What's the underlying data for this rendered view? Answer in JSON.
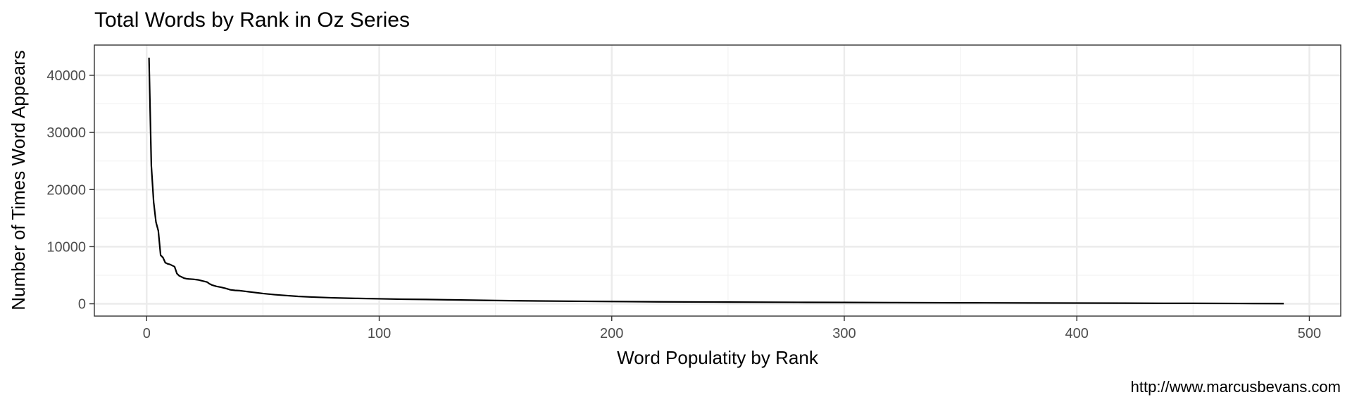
{
  "chart_data": {
    "type": "line",
    "title": "Total Words by Rank in Oz Series",
    "xlabel": "Word Populatity by Rank",
    "ylabel": "Number of Times Word Appears",
    "caption": "http://www.marcusbevans.com",
    "xlim": [
      -22.5,
      513.5
    ],
    "ylim": [
      -2150,
      45300
    ],
    "x_ticks": [
      0,
      100,
      200,
      300,
      400,
      500
    ],
    "x_tick_labels": [
      "0",
      "100",
      "200",
      "300",
      "400",
      "500"
    ],
    "y_ticks": [
      0,
      10000,
      20000,
      30000,
      40000
    ],
    "y_tick_labels": [
      "0",
      "10000",
      "20000",
      "30000",
      "40000"
    ],
    "x_minor_ticks": [
      50,
      150,
      250,
      350,
      450
    ],
    "y_minor_ticks": [
      5000,
      15000,
      25000,
      35000
    ],
    "grid": true,
    "legend": "none",
    "colors": {
      "line": "#000000",
      "grid_major": "#ebebeb",
      "grid_minor": "#f2f2f2",
      "panel_border": "#333333",
      "tick_label": "#4d4d4d"
    },
    "series": [
      {
        "x": [
          1,
          2,
          3,
          4,
          5,
          6,
          7,
          8,
          9,
          10,
          11,
          12,
          13,
          14,
          15,
          16,
          17,
          18,
          20,
          22,
          24,
          26,
          27,
          28,
          30,
          32,
          34,
          36,
          38,
          40,
          42,
          44,
          46,
          48,
          50,
          55,
          60,
          65,
          70,
          80,
          90,
          100,
          110,
          120,
          130,
          140,
          150,
          160,
          180,
          200,
          220,
          250,
          280,
          300,
          320,
          350,
          380,
          400,
          420,
          450,
          470,
          489
        ],
        "y": [
          43100,
          24200,
          17800,
          14300,
          12800,
          8500,
          8100,
          7200,
          7000,
          6900,
          6700,
          6500,
          5300,
          4900,
          4700,
          4500,
          4400,
          4350,
          4300,
          4200,
          4000,
          3800,
          3500,
          3300,
          3050,
          2900,
          2700,
          2450,
          2350,
          2300,
          2200,
          2100,
          2000,
          1900,
          1800,
          1600,
          1450,
          1300,
          1200,
          1050,
          950,
          880,
          800,
          760,
          700,
          640,
          580,
          530,
          460,
          400,
          350,
          300,
          260,
          240,
          210,
          180,
          150,
          130,
          110,
          80,
          60,
          40
        ]
      }
    ]
  }
}
